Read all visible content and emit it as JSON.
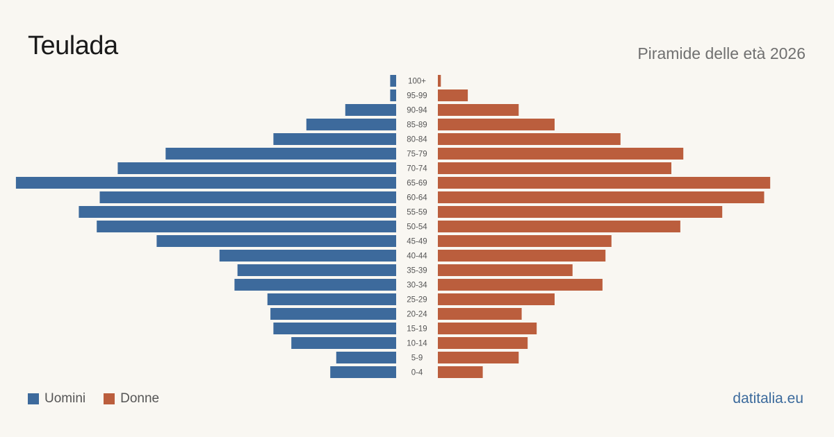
{
  "header": {
    "title": "Teulada",
    "subtitle": "Piramide delle età 2026"
  },
  "legend": {
    "men_label": "Uomini",
    "women_label": "Donne"
  },
  "brand": "datitalia.eu",
  "colors": {
    "men": "#3d6a9c",
    "women": "#bb5e3d",
    "background": "#f9f7f2",
    "age_label": "#555555"
  },
  "chart_data": {
    "type": "bar",
    "orientation": "horizontal-pyramid",
    "categories": [
      "100+",
      "95-99",
      "90-94",
      "85-89",
      "80-84",
      "75-79",
      "70-74",
      "65-69",
      "60-64",
      "55-59",
      "50-54",
      "45-49",
      "40-44",
      "35-39",
      "30-34",
      "25-29",
      "20-24",
      "15-19",
      "10-14",
      "5-9",
      "0-4"
    ],
    "series": [
      {
        "name": "Uomini",
        "values": [
          2,
          2,
          17,
          30,
          41,
          77,
          93,
          127,
          99,
          106,
          100,
          80,
          59,
          53,
          54,
          43,
          42,
          41,
          35,
          20,
          22
        ]
      },
      {
        "name": "Donne",
        "values": [
          1,
          10,
          27,
          39,
          61,
          82,
          78,
          111,
          109,
          95,
          81,
          58,
          56,
          45,
          55,
          39,
          28,
          33,
          30,
          27,
          15
        ]
      }
    ],
    "xlim": [
      0,
      130
    ],
    "grid": false
  }
}
